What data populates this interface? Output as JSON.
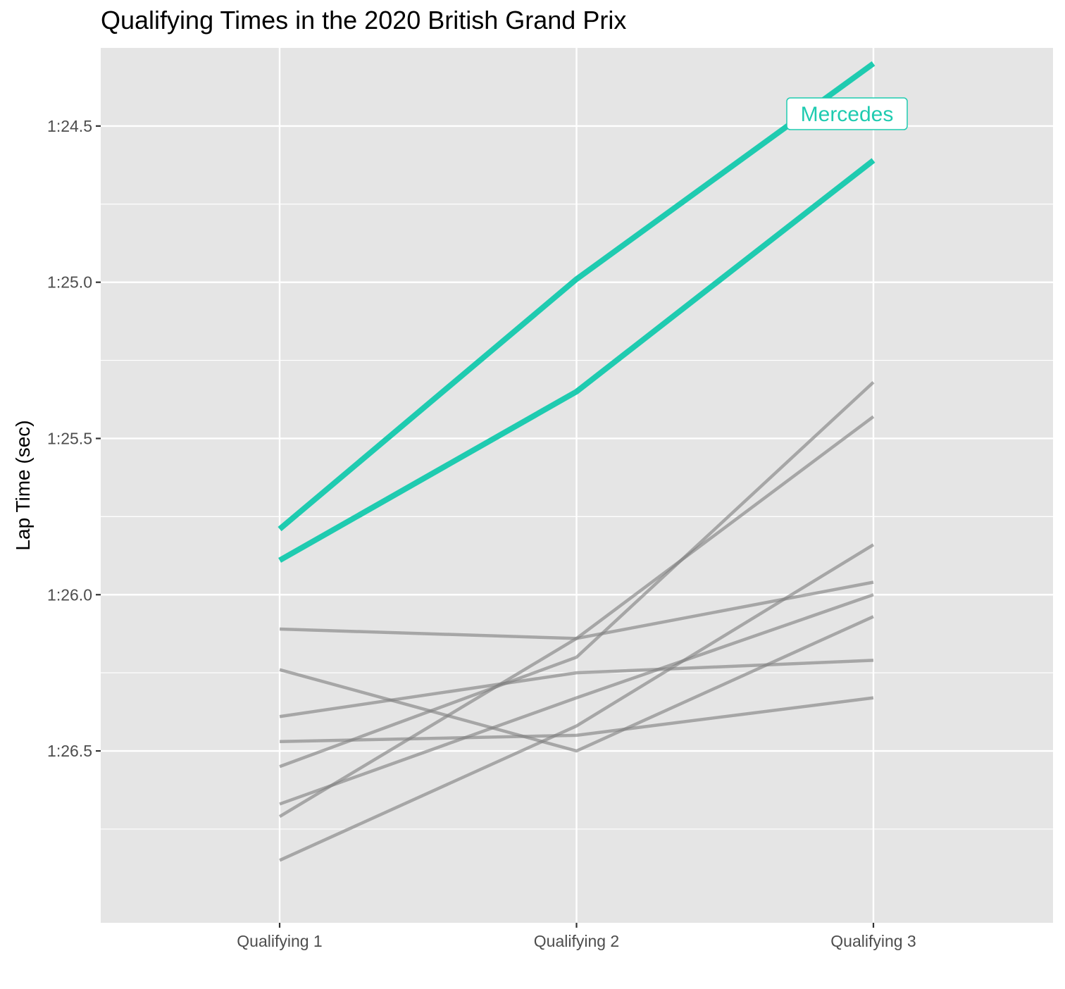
{
  "chart_data": {
    "type": "line",
    "title": "Qualifying Times in the 2020 British Grand Prix",
    "xlabel": "",
    "ylabel": "Lap Time (sec)",
    "categories": [
      "Qualifying 1",
      "Qualifying 2",
      "Qualifying 3"
    ],
    "y_axis": {
      "unit": "seconds",
      "reversed": true,
      "range": [
        84.25,
        87.05
      ],
      "ticks": [
        84.5,
        85.0,
        85.5,
        86.0,
        86.5
      ],
      "tick_labels": [
        "1:24.5",
        "1:25.0",
        "1:25.5",
        "1:26.0",
        "1:26.5"
      ]
    },
    "grid": true,
    "highlight": {
      "label": "Mercedes",
      "color": "#1fcbb0"
    },
    "other_color": "#808080",
    "series": [
      {
        "group": "Mercedes",
        "values": [
          85.79,
          84.99,
          84.3
        ]
      },
      {
        "group": "Mercedes",
        "values": [
          85.89,
          85.35,
          84.61
        ]
      },
      {
        "group": "other",
        "values": [
          86.11,
          86.14,
          85.96
        ]
      },
      {
        "group": "other",
        "values": [
          86.24,
          86.5,
          86.07
        ]
      },
      {
        "group": "other",
        "values": [
          86.39,
          86.25,
          86.21
        ]
      },
      {
        "group": "other",
        "values": [
          86.47,
          86.45,
          86.33
        ]
      },
      {
        "group": "other",
        "values": [
          86.55,
          86.2,
          85.32
        ]
      },
      {
        "group": "other",
        "values": [
          86.67,
          86.33,
          86.0
        ]
      },
      {
        "group": "other",
        "values": [
          86.71,
          86.14,
          85.43
        ]
      },
      {
        "group": "other",
        "values": [
          86.85,
          86.42,
          85.84
        ]
      }
    ]
  }
}
